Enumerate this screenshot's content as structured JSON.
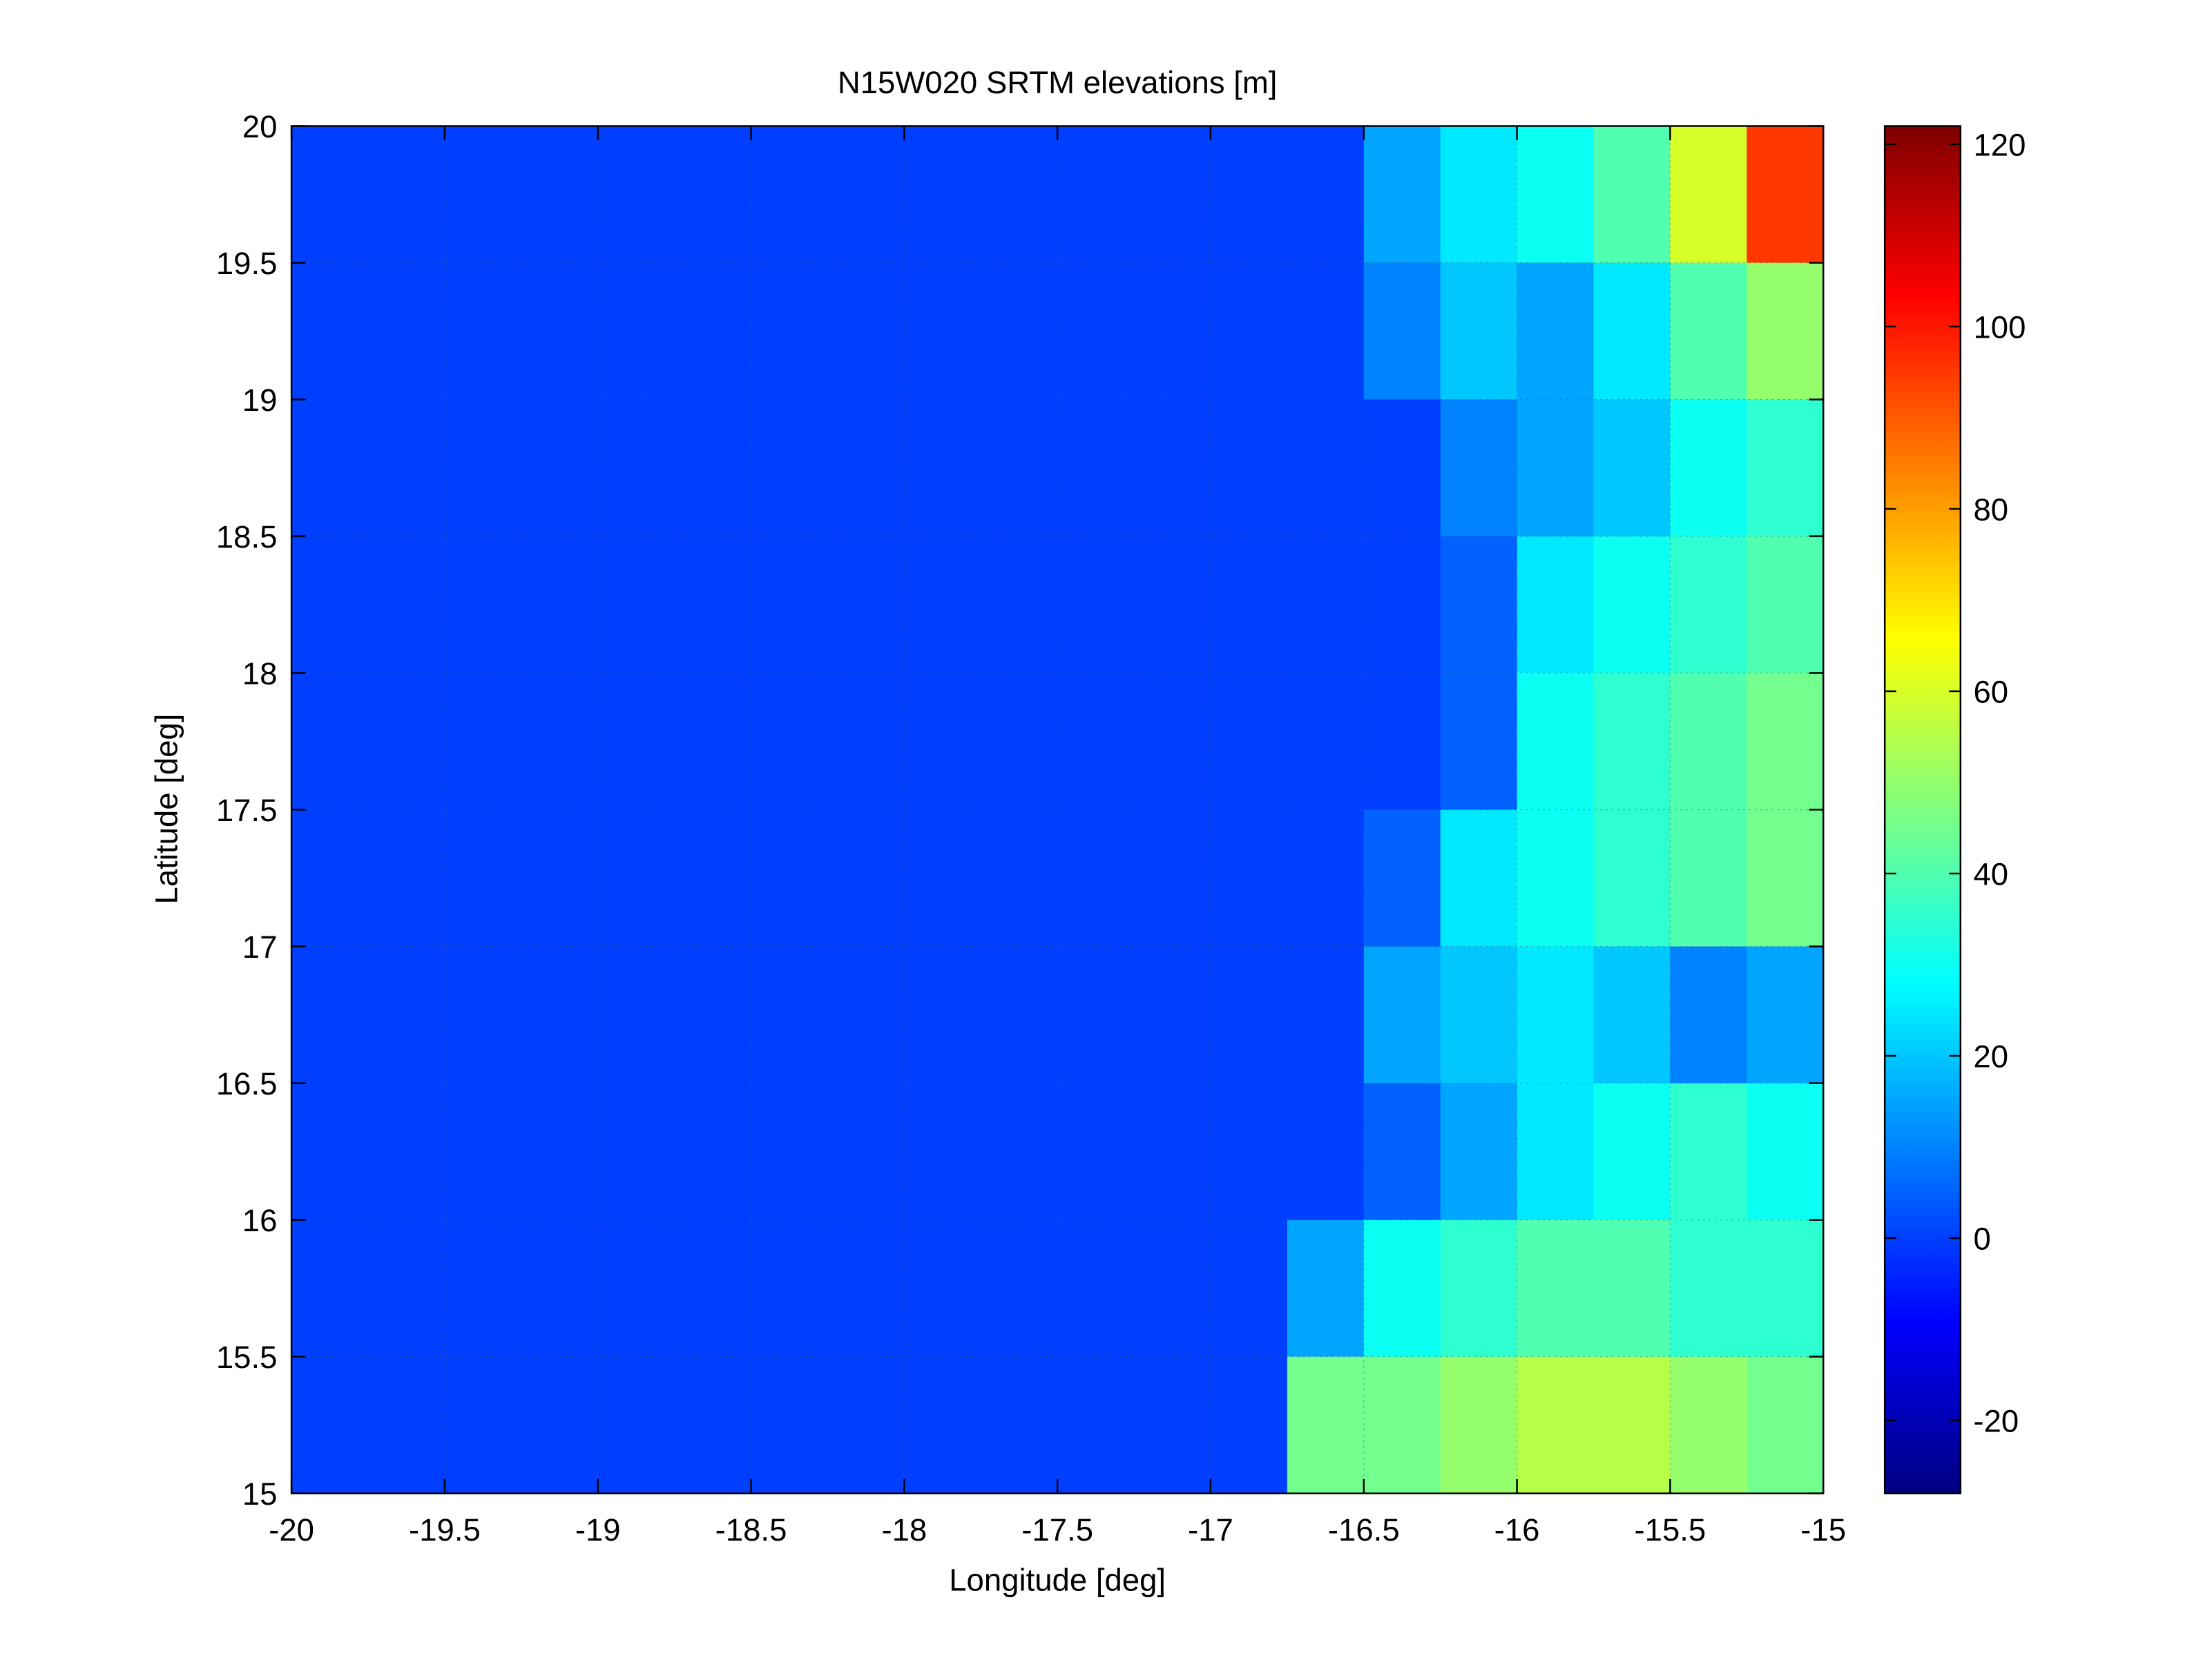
{
  "chart_data": {
    "type": "heatmap",
    "title": "N15W020 SRTM elevations [m]",
    "x_label": "Longitude [deg]",
    "y_label": "Latitude [deg]",
    "xlim": [
      -20,
      -15
    ],
    "ylim": [
      15,
      20
    ],
    "xticks": [
      -20,
      -19.5,
      -19,
      -18.5,
      -18,
      -17.5,
      -17,
      -16.5,
      -16,
      -15.5,
      -15
    ],
    "yticks": [
      15,
      15.5,
      16,
      16.5,
      17,
      17.5,
      18,
      18.5,
      19,
      19.5,
      20
    ],
    "grid": true,
    "colormap": "jet",
    "clim": [
      -28,
      122
    ],
    "colorbar_ticks": [
      -20,
      0,
      20,
      40,
      60,
      80,
      100,
      120
    ],
    "z": [
      [
        0,
        0,
        0,
        0,
        0,
        0,
        0,
        0,
        0,
        0,
        0,
        0,
        0,
        0,
        15,
        25,
        30,
        40,
        60,
        95
      ],
      [
        0,
        0,
        0,
        0,
        0,
        0,
        0,
        0,
        0,
        0,
        0,
        0,
        0,
        0,
        10,
        20,
        15,
        25,
        40,
        50
      ],
      [
        0,
        0,
        0,
        0,
        0,
        0,
        0,
        0,
        0,
        0,
        0,
        0,
        0,
        0,
        0,
        10,
        15,
        20,
        30,
        35
      ],
      [
        0,
        0,
        0,
        0,
        0,
        0,
        0,
        0,
        0,
        0,
        0,
        0,
        0,
        0,
        0,
        5,
        25,
        30,
        35,
        40
      ],
      [
        0,
        0,
        0,
        0,
        0,
        0,
        0,
        0,
        0,
        0,
        0,
        0,
        0,
        0,
        0,
        5,
        30,
        35,
        40,
        45
      ],
      [
        0,
        0,
        0,
        0,
        0,
        0,
        0,
        0,
        0,
        0,
        0,
        0,
        0,
        0,
        5,
        25,
        30,
        35,
        40,
        45
      ],
      [
        0,
        0,
        0,
        0,
        0,
        0,
        0,
        0,
        0,
        0,
        0,
        0,
        0,
        0,
        15,
        20,
        25,
        20,
        10,
        15
      ],
      [
        0,
        0,
        0,
        0,
        0,
        0,
        0,
        0,
        0,
        0,
        0,
        0,
        0,
        0,
        5,
        15,
        25,
        30,
        35,
        30
      ],
      [
        0,
        0,
        0,
        0,
        0,
        0,
        0,
        0,
        0,
        0,
        0,
        0,
        0,
        15,
        30,
        35,
        40,
        40,
        35,
        35
      ],
      [
        0,
        0,
        0,
        0,
        0,
        0,
        0,
        0,
        0,
        0,
        0,
        0,
        0,
        45,
        45,
        50,
        55,
        55,
        50,
        45
      ]
    ]
  }
}
